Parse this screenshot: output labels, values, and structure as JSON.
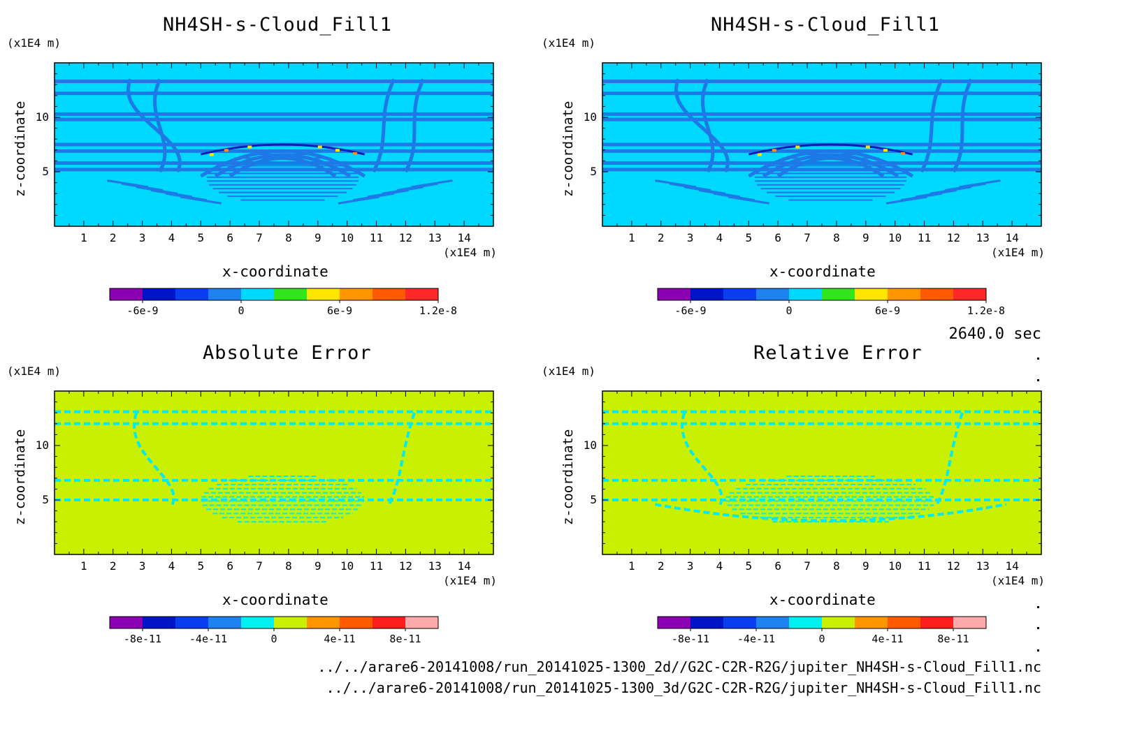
{
  "time_label": "2640.0 sec",
  "file_paths": [
    "../../arare6-20141008/run_20141025-1300_2d//G2C-C2R-R2G/jupiter_NH4SH-s-Cloud_Fill1.nc",
    "../../arare6-20141008/run_20141025-1300_3d/G2C-C2R-R2G/jupiter_NH4SH-s-Cloud_Fill1.nc"
  ],
  "colors": {
    "cloud_background": "#00d8ff",
    "cloud_band": "#1e78e6",
    "error_background": "#c8f000",
    "error_patch": "#00ecf0",
    "hot1": "#ffe600",
    "hot2": "#ff8c1a"
  },
  "chart_data": [
    {
      "type": "heatmap",
      "title": "NH4SH-s-Cloud_Fill1",
      "xlabel": "x-coordinate",
      "ylabel": "z-coordinate",
      "x_unit": "(x1E4 m)",
      "y_unit": "(x1E4 m)",
      "xlim": [
        0,
        15
      ],
      "ylim": [
        0,
        15
      ],
      "xticks": [
        1,
        2,
        3,
        4,
        5,
        6,
        7,
        8,
        9,
        10,
        11,
        12,
        13,
        14
      ],
      "yticks": [
        5,
        10
      ],
      "colorbar": {
        "colors": [
          "#8c00b4",
          "#0014c8",
          "#0a3cf0",
          "#1e82f0",
          "#00d8ff",
          "#32e61e",
          "#ffe600",
          "#ff9600",
          "#ff5a00",
          "#ff2828"
        ],
        "range": [
          -8e-09,
          1.2e-08
        ],
        "tick_values": [
          -6e-09,
          0,
          6e-09,
          1.2e-08
        ],
        "tick_labels": [
          "-6e-9",
          "0",
          "6e-9",
          "1.2e-8"
        ]
      }
    },
    {
      "type": "heatmap",
      "title": "NH4SH-s-Cloud_Fill1",
      "xlabel": "x-coordinate",
      "ylabel": "z-coordinate",
      "x_unit": "(x1E4 m)",
      "y_unit": "(x1E4 m)",
      "xlim": [
        0,
        15
      ],
      "ylim": [
        0,
        15
      ],
      "xticks": [
        1,
        2,
        3,
        4,
        5,
        6,
        7,
        8,
        9,
        10,
        11,
        12,
        13,
        14
      ],
      "yticks": [
        5,
        10
      ],
      "colorbar": {
        "colors": [
          "#8c00b4",
          "#0014c8",
          "#0a3cf0",
          "#1e82f0",
          "#00d8ff",
          "#32e61e",
          "#ffe600",
          "#ff9600",
          "#ff5a00",
          "#ff2828"
        ],
        "range": [
          -8e-09,
          1.2e-08
        ],
        "tick_values": [
          -6e-09,
          0,
          6e-09,
          1.2e-08
        ],
        "tick_labels": [
          "-6e-9",
          "0",
          "6e-9",
          "1.2e-8"
        ]
      }
    },
    {
      "type": "heatmap",
      "title": "Absolute Error",
      "xlabel": "x-coordinate",
      "ylabel": "z-coordinate",
      "x_unit": "(x1E4 m)",
      "y_unit": "(x1E4 m)",
      "xlim": [
        0,
        15
      ],
      "ylim": [
        0,
        15
      ],
      "xticks": [
        1,
        2,
        3,
        4,
        5,
        6,
        7,
        8,
        9,
        10,
        11,
        12,
        13,
        14
      ],
      "yticks": [
        5,
        10
      ],
      "colorbar": {
        "colors": [
          "#8c00b4",
          "#0014c8",
          "#0a3cf0",
          "#1e82f0",
          "#00f0f0",
          "#c8f000",
          "#ff9600",
          "#ff5a00",
          "#ff1e1e",
          "#ffaaaa"
        ],
        "range": [
          -1e-10,
          1e-10
        ],
        "tick_values": [
          -8e-11,
          -4e-11,
          0,
          4e-11,
          8e-11
        ],
        "tick_labels": [
          "-8e-11",
          "-4e-11",
          "0",
          "4e-11",
          "8e-11"
        ]
      }
    },
    {
      "type": "heatmap",
      "title": "Relative Error",
      "xlabel": "x-coordinate",
      "ylabel": "z-coordinate",
      "x_unit": "(x1E4 m)",
      "y_unit": "(x1E4 m)",
      "xlim": [
        0,
        15
      ],
      "ylim": [
        0,
        15
      ],
      "xticks": [
        1,
        2,
        3,
        4,
        5,
        6,
        7,
        8,
        9,
        10,
        11,
        12,
        13,
        14
      ],
      "yticks": [
        5,
        10
      ],
      "colorbar": {
        "colors": [
          "#8c00b4",
          "#0014c8",
          "#0a3cf0",
          "#1e82f0",
          "#00f0f0",
          "#c8f000",
          "#ff9600",
          "#ff5a00",
          "#ff1e1e",
          "#ffaaaa"
        ],
        "range": [
          -1e-10,
          1e-10
        ],
        "tick_values": [
          -8e-11,
          -4e-11,
          0,
          4e-11,
          8e-11
        ],
        "tick_labels": [
          "-8e-11",
          "-4e-11",
          "0",
          "4e-11",
          "8e-11"
        ]
      }
    }
  ]
}
